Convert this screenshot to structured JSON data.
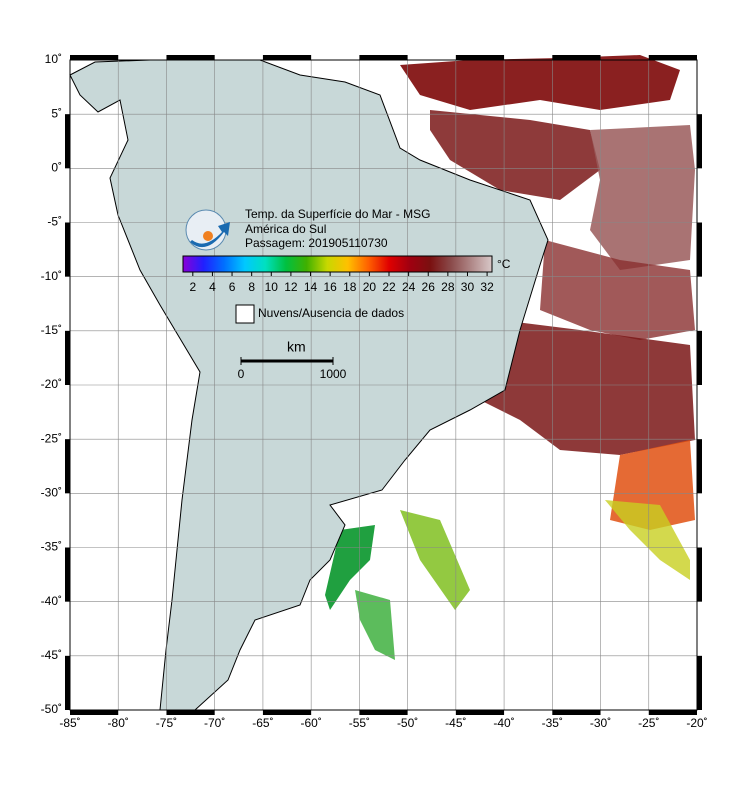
{
  "chart_data": {
    "type": "map",
    "title_lines": [
      "Temp. da Superfície do Mar - MSG",
      "América do Sul",
      "Passagem: 201905110730"
    ],
    "xlim": [
      -85,
      -20
    ],
    "ylim": [
      -50,
      10
    ],
    "xticks": [
      {
        "value": -85,
        "label": "-85˚"
      },
      {
        "value": -80,
        "label": "-80˚"
      },
      {
        "value": -75,
        "label": "-75˚"
      },
      {
        "value": -70,
        "label": "-70˚"
      },
      {
        "value": -65,
        "label": "-65˚"
      },
      {
        "value": -60,
        "label": "-60˚"
      },
      {
        "value": -55,
        "label": "-55˚"
      },
      {
        "value": -50,
        "label": "-50˚"
      },
      {
        "value": -45,
        "label": "-45˚"
      },
      {
        "value": -40,
        "label": "-40˚"
      },
      {
        "value": -35,
        "label": "-35˚"
      },
      {
        "value": -30,
        "label": "-30˚"
      },
      {
        "value": -25,
        "label": "-25˚"
      },
      {
        "value": -20,
        "label": "-20˚"
      }
    ],
    "yticks": [
      {
        "value": 10,
        "label": "10˚"
      },
      {
        "value": 5,
        "label": "5˚"
      },
      {
        "value": 0,
        "label": "0˚"
      },
      {
        "value": -5,
        "label": "-5˚"
      },
      {
        "value": -10,
        "label": "-10˚"
      },
      {
        "value": -15,
        "label": "-15˚"
      },
      {
        "value": -20,
        "label": "-20˚"
      },
      {
        "value": -25,
        "label": "-25˚"
      },
      {
        "value": -30,
        "label": "-30˚"
      },
      {
        "value": -35,
        "label": "-35˚"
      },
      {
        "value": -40,
        "label": "-40˚"
      },
      {
        "value": -45,
        "label": "-45˚"
      },
      {
        "value": -50,
        "label": "-50˚"
      }
    ],
    "grid": true,
    "colorbar": {
      "unit": "°C",
      "lim": [
        1,
        32.5
      ],
      "ticks": [
        2,
        4,
        6,
        8,
        10,
        12,
        14,
        16,
        18,
        20,
        22,
        24,
        26,
        28,
        30,
        32
      ],
      "colors": [
        "#8a00d8",
        "#2020ff",
        "#0070ff",
        "#00c8ff",
        "#00e0c0",
        "#00c040",
        "#40b000",
        "#c8d800",
        "#ffc000",
        "#ff6000",
        "#e00000",
        "#a00010",
        "#7a1010",
        "#8a4a4a",
        "#b08888",
        "#d8c8c8"
      ]
    },
    "legend": "Nuvens/Ausencia de dados",
    "scale_bar": {
      "unit": "km",
      "ticks": [
        0,
        1000
      ]
    }
  }
}
